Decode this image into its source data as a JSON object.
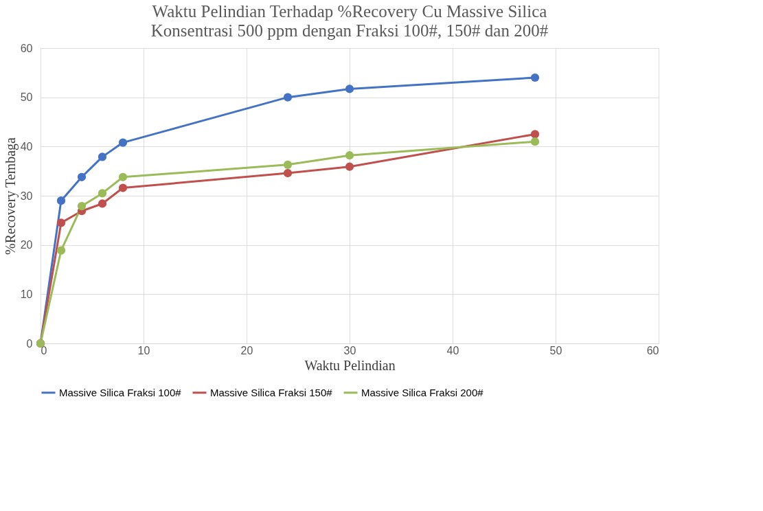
{
  "chart_data": {
    "type": "line",
    "title": "Waktu Pelindian Terhadap %Recovery Cu Massive Silica",
    "subtitle": "Konsentrasi 500 ppm dengan Fraksi 100#, 150# dan 200#",
    "xlabel": "Waktu Pelindian",
    "ylabel": "%Recovery Tembaga",
    "x": [
      0,
      2,
      4,
      6,
      8,
      24,
      30,
      48
    ],
    "series": [
      {
        "name": "Massive Silica Fraksi 100#",
        "color": "#4472c4",
        "values": [
          0,
          29,
          33.8,
          37.9,
          40.8,
          50,
          51.7,
          54
        ]
      },
      {
        "name": "Massive Silica Fraksi 150#",
        "color": "#c0504d",
        "values": [
          0,
          24.5,
          26.9,
          28.4,
          31.6,
          34.6,
          35.9,
          42.5
        ]
      },
      {
        "name": "Massive Silica Fraksi 200#",
        "color": "#9bbb59",
        "values": [
          0,
          18.9,
          27.9,
          30.5,
          33.8,
          36.3,
          38.2,
          41
        ]
      }
    ],
    "xlim": [
      0,
      60
    ],
    "xticks": [
      0,
      10,
      20,
      30,
      40,
      50,
      60
    ],
    "ylim": [
      0,
      60
    ],
    "yticks": [
      0,
      10,
      20,
      30,
      40,
      50,
      60
    ],
    "grid": true,
    "legend": "bottom",
    "marker": "circle",
    "line_style": "solid"
  }
}
